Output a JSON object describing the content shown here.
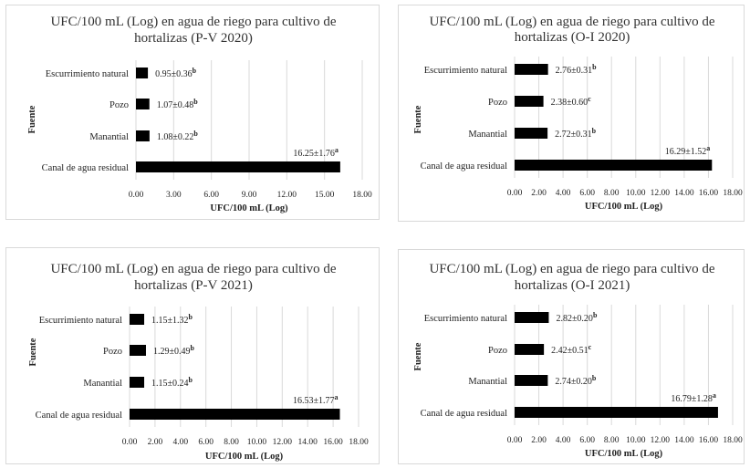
{
  "chart_data": [
    {
      "type": "bar",
      "orientation": "horizontal",
      "title_lines": [
        "UFC/100 mL (Log) en agua de riego para cultivo de",
        "hortalizas (P-V 2020)"
      ],
      "xlabel": "UFC/100 mL (Log)",
      "ylabel": "Fuente",
      "categories": [
        "Escurrimiento natural",
        "Pozo",
        "Manantial",
        "Canal de agua residual"
      ],
      "values": [
        0.95,
        1.07,
        1.08,
        16.25
      ],
      "value_labels": [
        {
          "text": "0.95±0.36",
          "sup": "b"
        },
        {
          "text": "1.07±0.48",
          "sup": "b"
        },
        {
          "text": "1.08±0.22",
          "sup": "b"
        },
        {
          "text": "16.25±1.76",
          "sup": "a"
        }
      ],
      "xlim": [
        0,
        18
      ],
      "ticks": [
        "0.00",
        "3.00",
        "6.00",
        "9.00",
        "12.00",
        "15.00",
        "18.00"
      ],
      "grid": true
    },
    {
      "type": "bar",
      "orientation": "horizontal",
      "title_lines": [
        "UFC/100 mL (Log) en agua de riego para cultivo de",
        "hortalizas (O-I 2020)"
      ],
      "xlabel": "UFC/100 mL (Log)",
      "ylabel": "Fuente",
      "categories": [
        "Escurrimiento natural",
        "Pozo",
        "Manantial",
        "Canal de agua residual"
      ],
      "values": [
        2.76,
        2.38,
        2.72,
        16.29
      ],
      "value_labels": [
        {
          "text": "2.76±0.31",
          "sup": "b"
        },
        {
          "text": "2.38±0.60",
          "sup": "c"
        },
        {
          "text": "2.72±0.31",
          "sup": "b"
        },
        {
          "text": "16.29±1.52",
          "sup": "a"
        }
      ],
      "xlim": [
        0,
        18
      ],
      "ticks": [
        "0.00",
        "2.00",
        "4.00",
        "6.00",
        "8.00",
        "10.00",
        "12.00",
        "14.00",
        "16.00",
        "18.00"
      ],
      "grid": true
    },
    {
      "type": "bar",
      "orientation": "horizontal",
      "title_lines": [
        "UFC/100 mL (Log) en agua de riego para cultivo de",
        "hortalizas (P-V 2021)"
      ],
      "xlabel": "UFC/100 mL (Log)",
      "ylabel": "Fuente",
      "categories": [
        "Escurrimiento natural",
        "Pozo",
        "Manantial",
        "Canal de agua residual"
      ],
      "values": [
        1.15,
        1.29,
        1.15,
        16.53
      ],
      "value_labels": [
        {
          "text": "1.15±1.32",
          "sup": "b"
        },
        {
          "text": "1.29±0.49",
          "sup": "b"
        },
        {
          "text": "1.15±0.24",
          "sup": "b"
        },
        {
          "text": "16.53±1.77",
          "sup": "a"
        }
      ],
      "xlim": [
        0,
        18
      ],
      "ticks": [
        "0.00",
        "2.00",
        "4.00",
        "6.00",
        "8.00",
        "10.00",
        "12.00",
        "14.00",
        "16.00",
        "18.00"
      ],
      "grid": true
    },
    {
      "type": "bar",
      "orientation": "horizontal",
      "title_lines": [
        "UFC/100 mL (Log) en agua de riego para cultivo de",
        "hortalizas (O-I 2021)"
      ],
      "xlabel": "UFC/100 mL (Log)",
      "ylabel": "Fuente",
      "categories": [
        "Escurrimiento natural",
        "Pozo",
        "Manantial",
        "Canal de agua residual"
      ],
      "values": [
        2.82,
        2.42,
        2.74,
        16.79
      ],
      "value_labels": [
        {
          "text": "2.82±0.20",
          "sup": "b"
        },
        {
          "text": "2.42±0.51",
          "sup": "c"
        },
        {
          "text": "2.74±0.20",
          "sup": "b"
        },
        {
          "text": "16.79±1.28",
          "sup": "a"
        }
      ],
      "xlim": [
        0,
        18
      ],
      "ticks": [
        "0.00",
        "2.00",
        "4.00",
        "6.00",
        "8.00",
        "10.00",
        "12.00",
        "14.00",
        "16.00",
        "18.00"
      ],
      "grid": true
    }
  ],
  "colors": {
    "bar": "#000000",
    "grid": "#d9d9d9",
    "border": "#d9d9d9"
  }
}
